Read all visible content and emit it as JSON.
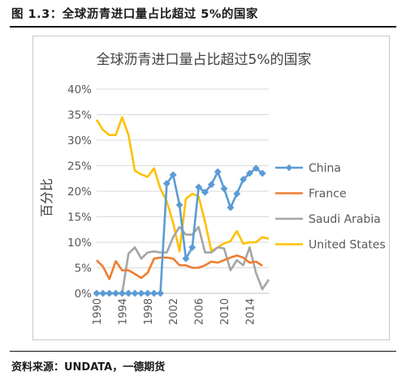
{
  "figure_caption": "图 1.3：全球沥青进口量占比超过 5%的国家",
  "source_note": "资料来源：UNDATA，一德期货",
  "chart_data": {
    "type": "line",
    "title": "全球沥青进口量占比超过5%的国家",
    "ylabel": "百分比",
    "xlabel": "",
    "ylim": [
      0,
      0.4
    ],
    "y_ticks": [
      "0%",
      "5%",
      "10%",
      "15%",
      "20%",
      "25%",
      "30%",
      "35%",
      "40%"
    ],
    "x_tick_labels": [
      "1990",
      "1994",
      "1998",
      "2002",
      "2006",
      "2010",
      "2014"
    ],
    "x": [
      1990,
      1991,
      1992,
      1993,
      1994,
      1995,
      1996,
      1997,
      1998,
      1999,
      2000,
      2001,
      2002,
      2003,
      2004,
      2005,
      2006,
      2007,
      2008,
      2009,
      2010,
      2011,
      2012,
      2013,
      2014,
      2015,
      2016,
      2017
    ],
    "legend_position": "right",
    "series": [
      {
        "name": "China",
        "color": "#5b9bd5",
        "marker": "diamond",
        "values": [
          0,
          0,
          0,
          0,
          0,
          0,
          0,
          0,
          0,
          0,
          0,
          0.215,
          0.232,
          0.173,
          0.068,
          0.09,
          0.208,
          0.198,
          0.213,
          0.238,
          0.205,
          0.168,
          0.195,
          0.223,
          0.235,
          0.245,
          0.235,
          null
        ]
      },
      {
        "name": "France",
        "color": "#ed7d31",
        "marker": "none",
        "values": [
          0.065,
          0.052,
          0.028,
          0.063,
          0.045,
          0.045,
          0.038,
          0.03,
          0.04,
          0.068,
          0.07,
          0.07,
          0.068,
          0.055,
          0.055,
          0.05,
          0.05,
          0.055,
          0.062,
          0.06,
          0.065,
          0.07,
          0.074,
          0.07,
          0.06,
          0.062,
          0.054,
          null
        ]
      },
      {
        "name": "Saudi Arabia",
        "color": "#a5a5a5",
        "marker": "none",
        "values": [
          0,
          0,
          0,
          0,
          0,
          0.078,
          0.09,
          0.068,
          0.08,
          0.082,
          0.08,
          0.08,
          0.11,
          0.13,
          0.115,
          0.115,
          0.13,
          0.08,
          0.08,
          0.09,
          0.088,
          0.045,
          0.065,
          0.055,
          0.09,
          0.04,
          0.008,
          0.027
        ]
      },
      {
        "name": "United States",
        "color": "#ffc000",
        "marker": "none",
        "values": [
          0.34,
          0.32,
          0.31,
          0.31,
          0.345,
          0.31,
          0.24,
          0.233,
          0.228,
          0.245,
          0.205,
          0.18,
          0.138,
          0.082,
          0.185,
          0.195,
          0.19,
          0.14,
          0.083,
          0.09,
          0.098,
          0.102,
          0.122,
          0.097,
          0.1,
          0.1,
          0.11,
          0.107
        ]
      }
    ]
  }
}
